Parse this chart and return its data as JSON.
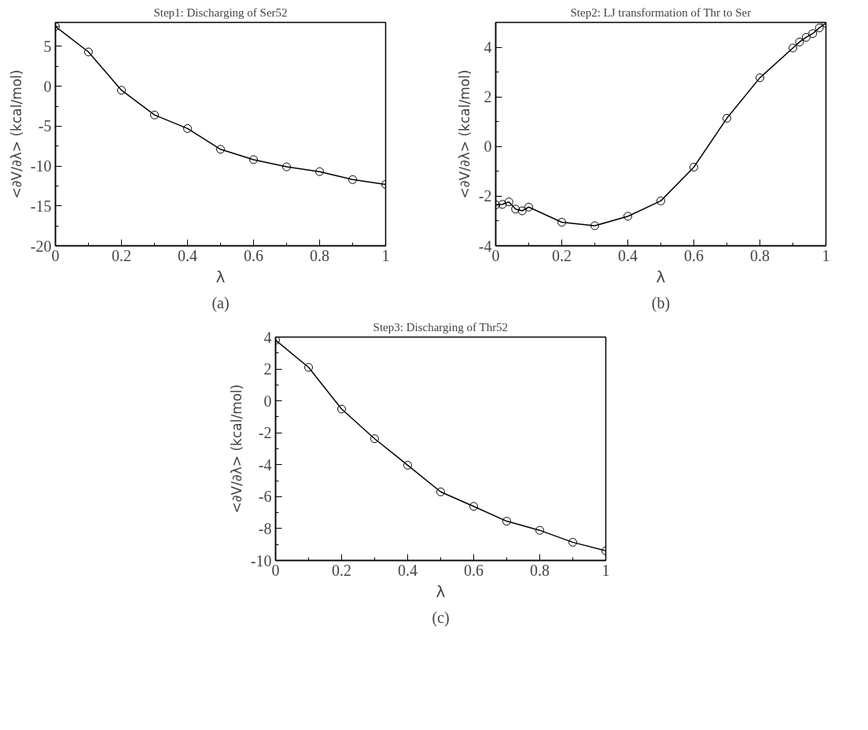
{
  "chart_data": [
    {
      "type": "line",
      "title": "Step1: Discharging of Ser52",
      "xlabel": "λ",
      "ylabel": "<∂V/∂λ> (kcal/mol)",
      "annotations": [
        "(a)"
      ],
      "marker": "circle",
      "line_style": "solid",
      "grid": false,
      "x": [
        0,
        0.1,
        0.2,
        0.3,
        0.4,
        0.5,
        0.6,
        0.7,
        0.8,
        0.9,
        1
      ],
      "series": [
        {
          "color": "#000000",
          "values": [
            7.5,
            4.3,
            -0.5,
            -3.6,
            -5.3,
            -7.9,
            -9.2,
            -10.1,
            -10.7,
            -11.7,
            -12.3
          ]
        }
      ],
      "xlim": [
        0,
        1
      ],
      "xticks": [
        0,
        {
          "value": 0.1,
          "label": null
        },
        0.2,
        {
          "value": 0.3,
          "label": null
        },
        0.4,
        {
          "value": 0.5,
          "label": null
        },
        0.6,
        {
          "value": 0.7,
          "label": null
        },
        0.8,
        {
          "value": 0.9,
          "label": null
        },
        1
      ],
      "ylim": [
        -20,
        8
      ],
      "yticks": [
        -20,
        {
          "value": -17.5,
          "label": null
        },
        -15,
        {
          "value": -12.5,
          "label": null
        },
        -10,
        {
          "value": -7.5,
          "label": null
        },
        -5,
        {
          "value": -2.5,
          "label": null
        },
        0,
        {
          "value": 2.5,
          "label": null
        },
        5,
        {
          "value": 7.5,
          "label": null
        }
      ]
    },
    {
      "type": "line",
      "title": "Step2: LJ transformation of Thr to Ser",
      "xlabel": "λ",
      "ylabel": "<∂V/∂λ> (kcal/mol)",
      "annotations": [
        "(b)"
      ],
      "marker": "circle",
      "line_style": "solid",
      "grid": false,
      "x": [
        0,
        0.02,
        0.04,
        0.06,
        0.08,
        0.1,
        0.2,
        0.3,
        0.4,
        0.5,
        0.6,
        0.7,
        0.8,
        0.9,
        0.92,
        0.94,
        0.96,
        0.98,
        1
      ],
      "series": [
        {
          "color": "#000000",
          "values": [
            -2.35,
            -2.33,
            -2.23,
            -2.52,
            -2.59,
            -2.44,
            -3.05,
            -3.19,
            -2.81,
            -2.19,
            -0.83,
            1.14,
            2.77,
            3.97,
            4.21,
            4.4,
            4.55,
            4.78,
            4.97
          ]
        }
      ],
      "xlim": [
        0,
        1
      ],
      "xticks": [
        0,
        {
          "value": 0.1,
          "label": null
        },
        0.2,
        {
          "value": 0.3,
          "label": null
        },
        0.4,
        {
          "value": 0.5,
          "label": null
        },
        0.6,
        {
          "value": 0.7,
          "label": null
        },
        0.8,
        {
          "value": 0.9,
          "label": null
        },
        1
      ],
      "ylim": [
        -4,
        5
      ],
      "yticks": [
        -4,
        {
          "value": -3,
          "label": null
        },
        -2,
        {
          "value": -1,
          "label": null
        },
        0,
        {
          "value": 1,
          "label": null
        },
        2,
        {
          "value": 3,
          "label": null
        },
        4
      ]
    },
    {
      "type": "line",
      "title": "Step3: Discharging of Thr52",
      "xlabel": "λ",
      "ylabel": "<∂V/∂λ> (kcal/mol)",
      "annotations": [
        "(c)"
      ],
      "marker": "circle",
      "line_style": "solid",
      "grid": false,
      "x": [
        0,
        0.1,
        0.2,
        0.3,
        0.4,
        0.5,
        0.6,
        0.7,
        0.8,
        0.9,
        1
      ],
      "series": [
        {
          "color": "#000000",
          "values": [
            3.81,
            2.1,
            -0.51,
            -2.37,
            -4.03,
            -5.7,
            -6.61,
            -7.54,
            -8.11,
            -8.86,
            -9.39
          ]
        }
      ],
      "xlim": [
        0,
        1
      ],
      "xticks": [
        0,
        {
          "value": 0.1,
          "label": null
        },
        0.2,
        {
          "value": 0.3,
          "label": null
        },
        0.4,
        {
          "value": 0.5,
          "label": null
        },
        0.6,
        {
          "value": 0.7,
          "label": null
        },
        0.8,
        {
          "value": 0.9,
          "label": null
        },
        1
      ],
      "ylim": [
        -10,
        4
      ],
      "yticks": [
        -10,
        {
          "value": -9,
          "label": null
        },
        -8,
        {
          "value": -7,
          "label": null
        },
        -6,
        {
          "value": -5,
          "label": null
        },
        -4,
        {
          "value": -3,
          "label": null
        },
        -2,
        {
          "value": -1,
          "label": null
        },
        0,
        {
          "value": 1,
          "label": null
        },
        2,
        {
          "value": 3,
          "label": null
        },
        4
      ]
    }
  ]
}
